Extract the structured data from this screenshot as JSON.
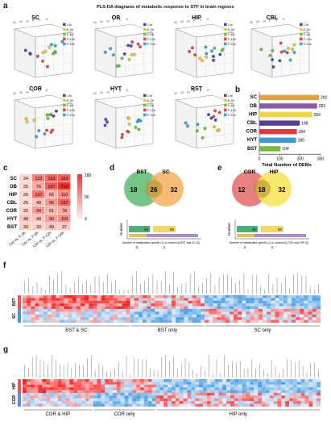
{
  "figure": {
    "title": "PLS-DA diagrams of metabolic response to STF in brain regions",
    "panels": [
      "a",
      "b",
      "c",
      "d",
      "e",
      "f",
      "g"
    ]
  },
  "pls_da": {
    "legend": [
      "Ctrl",
      "F-3h",
      "F-6h",
      "F-12h",
      "F-24h"
    ],
    "legend_colors": [
      "#4b4ba8",
      "#e6c84a",
      "#6fbf3f",
      "#e8454a",
      "#36a6d8"
    ],
    "plots": [
      {
        "name": "SC"
      },
      {
        "name": "OB"
      },
      {
        "name": "HIP"
      },
      {
        "name": "CBL"
      },
      {
        "name": "COR"
      },
      {
        "name": "HYT"
      },
      {
        "name": "BST"
      }
    ]
  },
  "chart_data": [
    {
      "type": "bar",
      "panel": "b",
      "categories": [
        "SC",
        "OB",
        "HIP",
        "CBL",
        "COR",
        "HYT",
        "BST"
      ],
      "values": [
        292,
        283,
        259,
        198,
        184,
        180,
        104
      ],
      "colors": [
        "#e8a13a",
        "#8e5aa8",
        "#f2d43a",
        "#5a3d8f",
        "#e03a3a",
        "#3a9ad9",
        "#7ab83a"
      ],
      "xlabel": "Total Number of DEMs",
      "xticks": [
        0,
        100,
        200,
        300
      ],
      "xlim": [
        0,
        300
      ]
    },
    {
      "type": "heatmap",
      "panel": "c",
      "rows": [
        "SC",
        "OB",
        "HIP",
        "CBL",
        "COR",
        "HYT",
        "BST"
      ],
      "columns": [
        "Ctrl vs. F-3h",
        "Ctrl vs. F-6h",
        "Ctrl vs. F-12h",
        "Ctrl vs. F-24h"
      ],
      "values": [
        [
          24,
          122,
          153,
          163
        ],
        [
          25,
          76,
          157,
          216
        ],
        [
          26,
          137,
          66,
          110
        ],
        [
          25,
          49,
          95,
          157
        ],
        [
          33,
          94,
          61,
          78
        ],
        [
          49,
          49,
          90,
          110
        ],
        [
          33,
          33,
          49,
          37
        ]
      ],
      "scale_ticks": [
        180,
        90,
        0
      ]
    }
  ],
  "venn_d": {
    "left": "BST",
    "right": "SC",
    "left_only": "18",
    "both": "26",
    "right_only": "32",
    "ylabel": "Number",
    "bar_values": [
      "44",
      "58"
    ],
    "caption": "Number of metabolites specific (1) or shared by BST and SC (2)",
    "x_ticks": [
      "2",
      "1"
    ]
  },
  "venn_e": {
    "left": "COR",
    "right": "HIP",
    "left_only": "12",
    "both": "18",
    "right_only": "32",
    "ylabel": "Number",
    "bar_values": [
      "30",
      "50"
    ],
    "caption": "Number of metabolites specific (1) or shared by COR and HIP (2)",
    "x_ticks": [
      "2",
      "1"
    ]
  },
  "heat_f": {
    "row_labels": [
      "BST",
      "SC"
    ],
    "sections": [
      "BST & SC",
      "BST only",
      "SC only"
    ]
  },
  "heat_g": {
    "row_labels": [
      "HIP",
      "COR"
    ],
    "sections": [
      "COR & HIP",
      "COR only",
      "HIP only"
    ]
  }
}
